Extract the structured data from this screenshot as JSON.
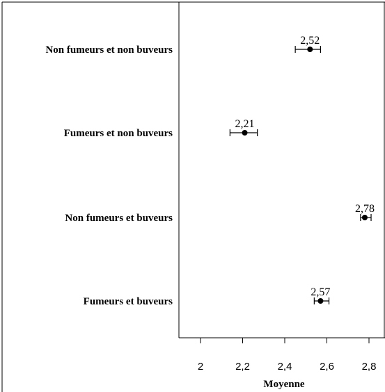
{
  "chart_data": {
    "type": "scatter",
    "title": "",
    "xlabel": "Moyenne",
    "ylabel": "",
    "xlim": [
      1.9,
      2.9
    ],
    "xticks": [
      2,
      2.2,
      2.4,
      2.6,
      2.8
    ],
    "xtick_labels": [
      "2",
      "2,2",
      "2,4",
      "2,6",
      "2,8"
    ],
    "grid": false,
    "categories": [
      "Non fumeurs et non buveurs",
      "Fumeurs et non buveurs",
      "Non fumeurs et buveurs",
      "Fumeurs et buveurs"
    ],
    "points": [
      {
        "category": "Non fumeurs et non buveurs",
        "mean": 2.52,
        "label": "2,52",
        "ci_low": 2.45,
        "ci_high": 2.57
      },
      {
        "category": "Fumeurs et non buveurs",
        "mean": 2.21,
        "label": "2,21",
        "ci_low": 2.14,
        "ci_high": 2.27
      },
      {
        "category": "Non fumeurs et buveurs",
        "mean": 2.78,
        "label": "2,78",
        "ci_low": 2.76,
        "ci_high": 2.81
      },
      {
        "category": "Fumeurs et buveurs",
        "mean": 2.57,
        "label": "2,57",
        "ci_low": 2.54,
        "ci_high": 2.61
      }
    ]
  }
}
